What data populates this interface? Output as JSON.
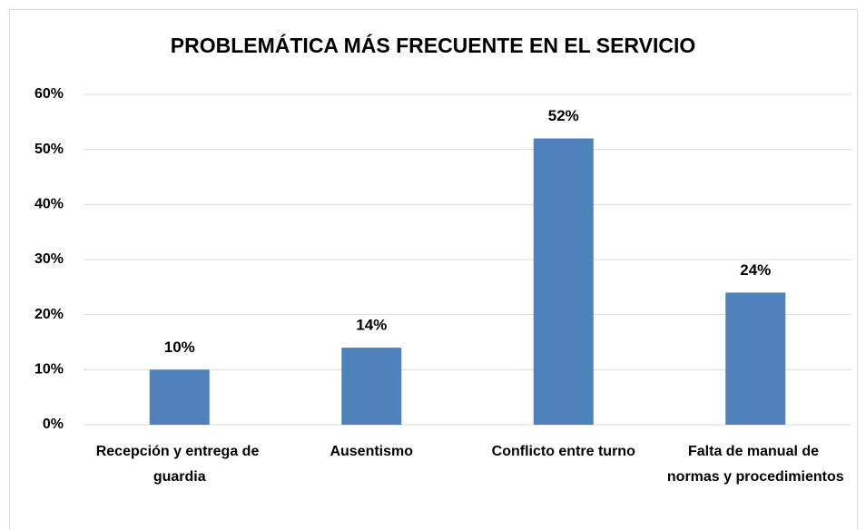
{
  "chart_data": {
    "type": "bar",
    "title": "PROBLEMÁTICA MÁS FRECUENTE EN EL SERVICIO",
    "categories": [
      "Recepción y entrega de guardia",
      "Ausentismo",
      "Conflicto entre turno",
      "Falta de manual de normas y procedimientos"
    ],
    "values": [
      10,
      14,
      52,
      24
    ],
    "value_labels": [
      "10%",
      "14%",
      "52%",
      "24%"
    ],
    "color": "#4f81bd",
    "ylim": [
      0,
      60
    ],
    "yticks": [
      {
        "value": 0,
        "label": "0%"
      },
      {
        "value": 10,
        "label": "10%"
      },
      {
        "value": 20,
        "label": "20%"
      },
      {
        "value": 30,
        "label": "30%"
      },
      {
        "value": 40,
        "label": "40%"
      },
      {
        "value": 50,
        "label": "50%"
      },
      {
        "value": 60,
        "label": "60%"
      }
    ],
    "grid": true
  }
}
